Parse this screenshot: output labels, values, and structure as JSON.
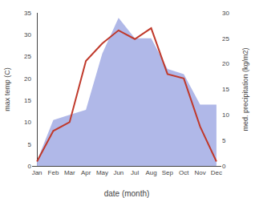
{
  "chart_data": {
    "type": "line",
    "categories": [
      "Jan",
      "Feb",
      "Mar",
      "Apr",
      "May",
      "Jun",
      "Jul",
      "Aug",
      "Sep",
      "Oct",
      "Nov",
      "Dec"
    ],
    "xlabel": "date (month)",
    "ylabel": "max temp (C)",
    "y2label": "med. precipitation (kg/m2)",
    "ylim": [
      0,
      35
    ],
    "yticks": [
      0,
      5,
      10,
      15,
      20,
      25,
      30,
      35
    ],
    "y2lim": [
      0,
      30
    ],
    "y2ticks": [
      0,
      5,
      10,
      15,
      20,
      25,
      30
    ],
    "grid": false,
    "series": [
      {
        "type": "area",
        "axis": "y2",
        "color": "#b0b8e8",
        "values": [
          1,
          9,
          10,
          11,
          22,
          29,
          25,
          25,
          19,
          18,
          12,
          12
        ]
      },
      {
        "type": "line",
        "color": "#c0392b",
        "values": [
          1,
          8,
          10,
          24,
          28,
          31,
          29,
          31.5,
          21,
          20,
          9,
          1
        ]
      }
    ]
  }
}
